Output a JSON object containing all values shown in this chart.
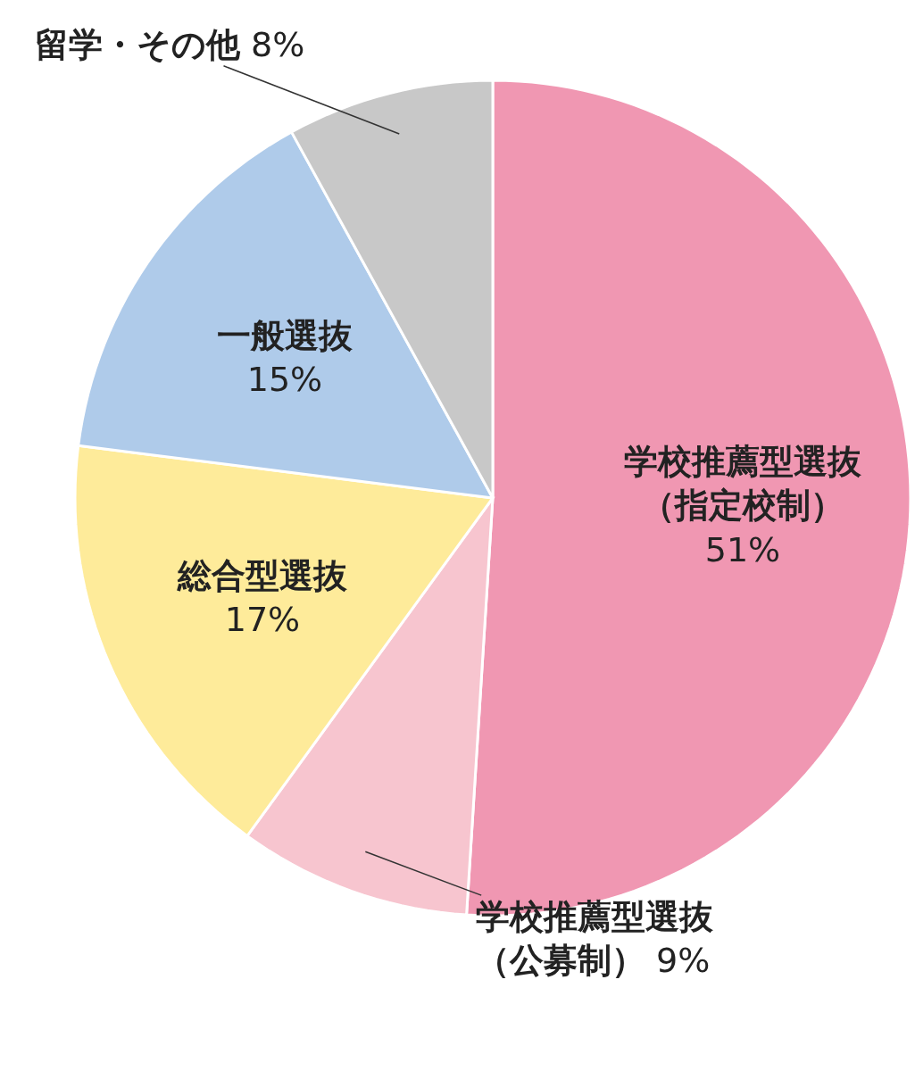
{
  "chart_data": {
    "type": "pie",
    "categories": [
      "学校推薦型選抜（指定校制）",
      "学校推薦型選抜（公募制）",
      "総合型選抜",
      "一般選抜",
      "留学・その他"
    ],
    "values": [
      51,
      9,
      17,
      15,
      8
    ],
    "value_labels": [
      "51%",
      "9%",
      "17%",
      "15%",
      "8%"
    ],
    "colors": [
      "#f097b2",
      "#f7c5cf",
      "#feeb9a",
      "#afcbea",
      "#c8c8c8"
    ],
    "legend": false
  }
}
